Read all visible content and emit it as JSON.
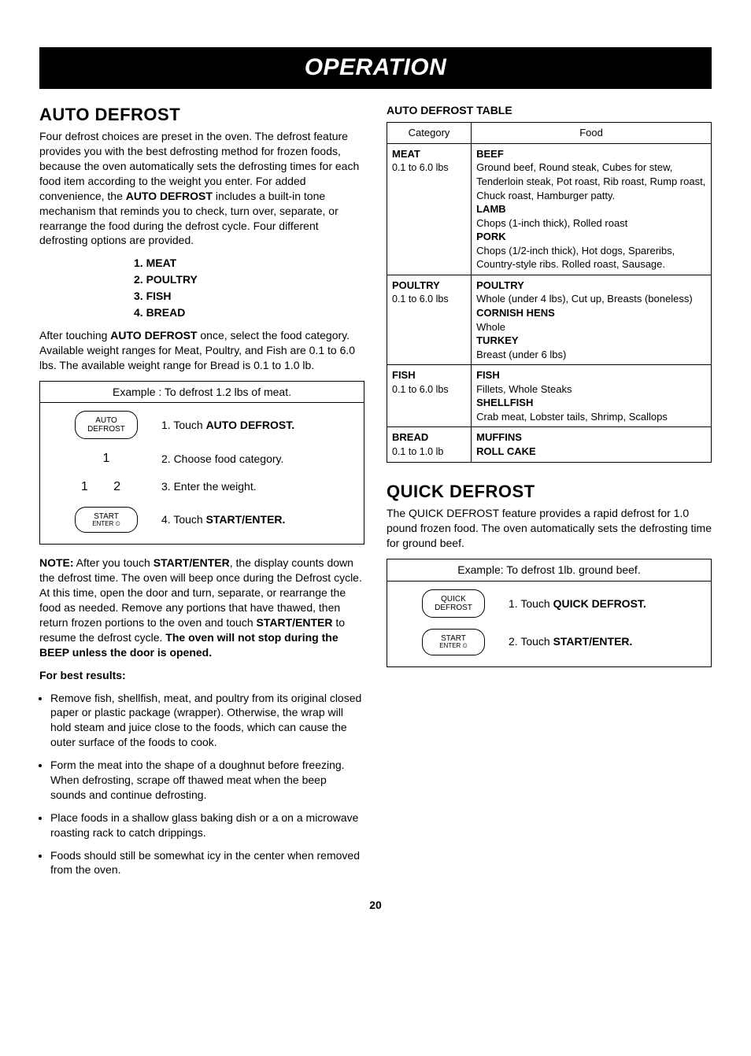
{
  "banner": "OPERATION",
  "left": {
    "heading": "AUTO DEFROST",
    "intro": "Four defrost choices are preset in the oven. The defrost feature provides you with the best defrosting method for frozen foods, because the oven automatically sets the defrosting times for each food item according to the weight you enter. For added convenience, the ",
    "intro_bold": "AUTO DEFROST",
    "intro2": " includes a built-in tone mechanism that reminds you to check, turn over, separate, or rearrange the food during the defrost cycle. Four different defrosting options are provided.",
    "options": [
      "1. MEAT",
      "2. POULTRY",
      "3. FISH",
      "4. BREAD"
    ],
    "after1": "After touching ",
    "after_bold": "AUTO DEFROST",
    "after2": " once, select the food category. Available weight ranges for Meat, Poultry, and Fish are 0.1 to 6.0 lbs. The available weight range for Bread is 0.1 to 1.0 lb.",
    "example_title": "Example : To defrost 1.2 lbs of meat.",
    "btn_auto1": "AUTO",
    "btn_auto2": "DEFROST",
    "step1": "1. Touch ",
    "step1_bold": "AUTO DEFROST.",
    "step2_num": "1",
    "step2": "2. Choose food category.",
    "step3_num": "1   2",
    "step3": "3. Enter the weight.",
    "btn_start1": "START",
    "btn_start2": "ENTER ⏲",
    "step4": "4. Touch ",
    "step4_bold": "START/ENTER.",
    "note_label": "NOTE:",
    "note1": " After you touch ",
    "note_bold1": "START/ENTER",
    "note2": ", the display counts down the defrost time. The oven will beep once during the Defrost cycle. At this time, open the door and turn, separate, or rearrange the food as needed. Remove any portions that have thawed, then return frozen portions to the oven and touch ",
    "note_bold2": "START/ENTER",
    "note3": " to resume the defrost cycle. ",
    "note_bold3": "The oven will not stop during the BEEP unless the door is opened.",
    "best_label": "For best results:",
    "tips": [
      "Remove fish, shellfish, meat, and poultry from its original closed paper or plastic package (wrapper). Otherwise, the wrap will hold steam and juice close to the foods, which can cause the outer surface of the foods to cook.",
      "Form the meat into the shape of a doughnut before freezing. When defrosting, scrape off thawed meat when the beep sounds and continue defrosting.",
      "Place foods in a shallow glass baking dish or a on a microwave roasting rack to catch drippings.",
      "Foods should still be somewhat icy in the center when removed from the oven."
    ]
  },
  "right": {
    "table_label": "AUTO DEFROST TABLE",
    "th_cat": "Category",
    "th_food": "Food",
    "rows": [
      {
        "cat": "MEAT",
        "catsub": "0.1 to 6.0 lbs",
        "food_html": "<b>BEEF</b>Ground beef, Round steak, Cubes for stew, Tenderloin steak, Pot roast, Rib roast, Rump roast, Chuck roast, Hamburger patty.<b>LAMB</b>Chops (1-inch thick), Rolled roast<b>PORK</b>Chops (1/2-inch thick), Hot dogs, Spareribs, Country-style ribs. Rolled roast, Sausage."
      },
      {
        "cat": "POULTRY",
        "catsub": "0.1 to 6.0 lbs",
        "food_html": "<b>POULTRY</b>Whole (under 4 lbs), Cut up, Breasts (boneless)<b>CORNISH HENS</b>Whole<b>TURKEY</b>Breast (under 6 lbs)"
      },
      {
        "cat": "FISH",
        "catsub": "0.1 to 6.0 lbs",
        "food_html": "<b>FISH</b>Fillets, Whole Steaks<b>SHELLFISH</b>Crab meat, Lobster tails, Shrimp, Scallops"
      },
      {
        "cat": "BREAD",
        "catsub": "0.1 to 1.0 lb",
        "food_html": "<b>MUFFINS</b><b>ROLL CAKE</b>"
      }
    ],
    "qd_heading": "QUICK DEFROST",
    "qd_intro": "The QUICK DEFROST feature provides a rapid defrost for 1.0 pound frozen food. The oven automatically sets the defrosting time for ground beef.",
    "qd_example_title": "Example: To defrost 1lb. ground beef.",
    "qd_btn1a": "QUICK",
    "qd_btn1b": "DEFROST",
    "qd_step1": "1. Touch ",
    "qd_step1_bold": "QUICK DEFROST.",
    "qd_step2": "2. Touch ",
    "qd_step2_bold": "START/ENTER."
  },
  "page_number": "20"
}
